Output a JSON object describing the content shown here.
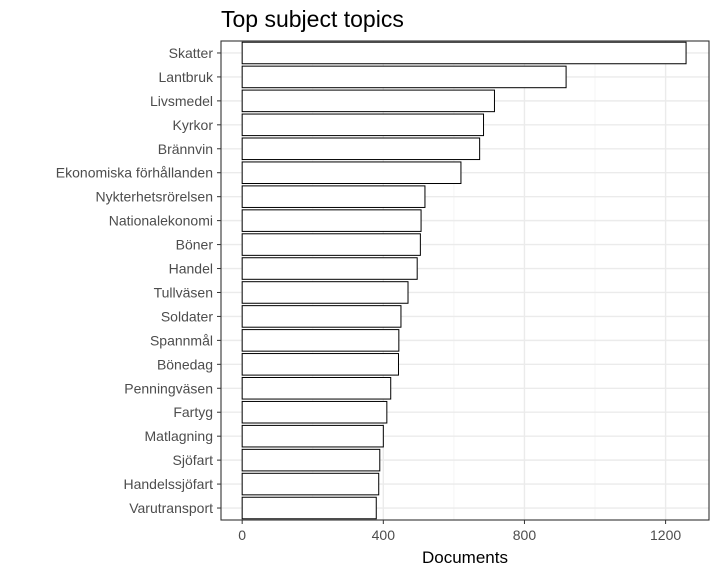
{
  "chart_data": {
    "type": "bar",
    "orientation": "horizontal",
    "title": "Top subject topics",
    "xlabel": "Documents",
    "ylabel": "",
    "categories": [
      "Skatter",
      "Lantbruk",
      "Livsmedel",
      "Kyrkor",
      "Brännvin",
      "Ekonomiska förhållanden",
      "Nykterhetsrörelsen",
      "Nationalekonomi",
      "Böner",
      "Handel",
      "Tullväsen",
      "Soldater",
      "Spannmål",
      "Bönedag",
      "Penningväsen",
      "Fartyg",
      "Matlagning",
      "Sjöfart",
      "Handelssjöfart",
      "Varutransport"
    ],
    "values": [
      1258,
      918,
      715,
      684,
      673,
      620,
      518,
      507,
      505,
      496,
      470,
      450,
      444,
      443,
      421,
      410,
      400,
      390,
      387,
      380
    ],
    "xlim": [
      -60,
      1323
    ],
    "xticks": [
      0,
      400,
      800,
      1200
    ],
    "grid": true,
    "legend": "none",
    "colors": {
      "bar_fill": "#ffffff",
      "bar_stroke": "#000000",
      "grid_major": "#ebebeb",
      "grid_minor": "#f5f5f5"
    }
  }
}
